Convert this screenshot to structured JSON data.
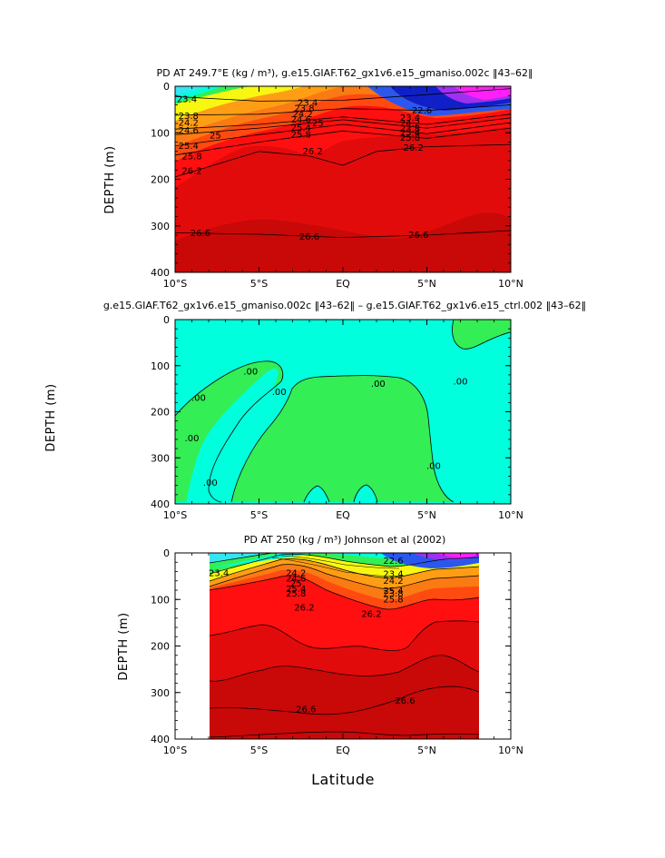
{
  "colors": {
    "cyan": "#33e6f0",
    "aqua": "#00ffdd",
    "green": "#33ee55",
    "yellow": "#f7f711",
    "orange": "#ff9e14",
    "orange_dark": "#fa7a14",
    "red_orange": "#ff4a10",
    "red": "#ff0f0f",
    "red_mid": "#e20b0b",
    "red_dark": "#c90808",
    "blue": "#2b57ee",
    "blue_dark": "#1020c8",
    "purple": "#9f30f0",
    "magenta": "#ff1ff7"
  },
  "chart_data": [
    {
      "type": "contour",
      "title": "PD AT 249.7°E (kg / m³), g.e15.GIAF.T62_gx1v6.e15_gmaniso.002c ‖43–62‖",
      "xlabel": "",
      "ylabel": "DEPTH (m)",
      "xlim": [
        -10,
        10
      ],
      "ylim": [
        0,
        400
      ],
      "x_ticks": [
        "10°S",
        "5°S",
        "EQ",
        "5°N",
        "10°N"
      ],
      "y_ticks": [
        "0",
        "100",
        "200",
        "300",
        "400"
      ],
      "isolines": [
        {
          "name": "23.4",
          "x": [
            -10,
            -5,
            0,
            5,
            10
          ],
          "y": [
            22,
            32,
            30,
            18,
            5
          ]
        },
        {
          "name": "23.8",
          "x": [
            -10,
            -5,
            0,
            5,
            10
          ],
          "y": [
            62,
            60,
            48,
            52,
            40
          ]
        },
        {
          "name": "24.6",
          "x": [
            -10,
            -5,
            0,
            5,
            10
          ],
          "y": [
            92,
            82,
            66,
            82,
            60
          ]
        },
        {
          "name": "25",
          "x": [
            -10,
            -5,
            0,
            5,
            10
          ],
          "y": [
            104,
            90,
            72,
            90,
            68
          ]
        },
        {
          "name": "25.4",
          "x": [
            -10,
            -5,
            0,
            5,
            10
          ],
          "y": [
            128,
            104,
            82,
            102,
            78
          ]
        },
        {
          "name": "25.8",
          "x": [
            -10,
            -5,
            0,
            5,
            10
          ],
          "y": [
            148,
            120,
            96,
            112,
            90
          ]
        },
        {
          "name": "26.2",
          "x": [
            -10,
            -5,
            -2,
            0,
            2,
            5,
            10
          ],
          "y": [
            195,
            140,
            150,
            170,
            140,
            130,
            125
          ]
        },
        {
          "name": "26.6",
          "x": [
            -10,
            -5,
            0,
            5,
            10
          ],
          "y": [
            315,
            318,
            325,
            320,
            310
          ]
        }
      ],
      "contour_labels": [
        {
          "text": "23.4",
          "x": -9.3,
          "y": 28
        },
        {
          "text": "23.8",
          "x": -9.2,
          "y": 64
        },
        {
          "text": "24.2",
          "x": -9.2,
          "y": 79
        },
        {
          "text": "24.6",
          "x": -9.2,
          "y": 96
        },
        {
          "text": "25",
          "x": -7.6,
          "y": 106
        },
        {
          "text": "25.4",
          "x": -9.2,
          "y": 129
        },
        {
          "text": "25.8",
          "x": -9.0,
          "y": 151
        },
        {
          "text": "26.2",
          "x": -9.0,
          "y": 182
        },
        {
          "text": "23.4",
          "x": -2.1,
          "y": 36
        },
        {
          "text": "23.8",
          "x": -2.3,
          "y": 48
        },
        {
          "text": "24.2",
          "x": -2.4,
          "y": 60
        },
        {
          "text": "24.6",
          "x": -2.5,
          "y": 72
        },
        {
          "text": "25",
          "x": -1.5,
          "y": 80
        },
        {
          "text": "25.4",
          "x": -2.5,
          "y": 90
        },
        {
          "text": "25.8",
          "x": -2.5,
          "y": 104
        },
        {
          "text": "26.2",
          "x": -1.8,
          "y": 140
        },
        {
          "text": "22.6",
          "x": 4.7,
          "y": 53
        },
        {
          "text": "23.4",
          "x": 4.0,
          "y": 68
        },
        {
          "text": "24.2",
          "x": 4.0,
          "y": 80
        },
        {
          "text": "23.8",
          "x": 4.0,
          "y": 92
        },
        {
          "text": "25.4",
          "x": 4.0,
          "y": 100
        },
        {
          "text": "25.8",
          "x": 4.0,
          "y": 111
        },
        {
          "text": "26.2",
          "x": 4.2,
          "y": 133
        },
        {
          "text": "26.6",
          "x": -8.5,
          "y": 316
        },
        {
          "text": "26.6",
          "x": -2.0,
          "y": 324
        },
        {
          "text": "26.6",
          "x": 4.5,
          "y": 320
        }
      ]
    },
    {
      "type": "contour",
      "title": "g.e15.GIAF.T62_gx1v6.e15_gmaniso.002c ‖43–62‖ – g.e15.GIAF.T62_gx1v6.e15_ctrl.002 ‖43–62‖",
      "xlabel": "",
      "ylabel": "DEPTH (m)",
      "xlim": [
        -10,
        10
      ],
      "ylim": [
        0,
        400
      ],
      "x_ticks": [
        "10°S",
        "5°S",
        "EQ",
        "5°N",
        "10°N"
      ],
      "y_ticks": [
        "0",
        "100",
        "200",
        "300",
        "400"
      ],
      "contour_labels": [
        {
          "text": ".00",
          "x": -5.5,
          "y": 113
        },
        {
          "text": ".00",
          "x": -8.6,
          "y": 170
        },
        {
          "text": ".00",
          "x": -9.0,
          "y": 258
        },
        {
          "text": ".00",
          "x": -3.8,
          "y": 158
        },
        {
          "text": ".00",
          "x": -7.9,
          "y": 355
        },
        {
          "text": ".00",
          "x": 2.1,
          "y": 140
        },
        {
          "text": ".00",
          "x": 5.4,
          "y": 318
        },
        {
          "text": ".00",
          "x": 7.0,
          "y": 135
        }
      ]
    },
    {
      "type": "contour",
      "title": "PD AT 250 (kg / m³) Johnson et al (2002)",
      "xlabel": "Latitude",
      "ylabel": "DEPTH (m)",
      "xlim": [
        -10,
        10
      ],
      "ylim": [
        0,
        400
      ],
      "data_xrange": [
        -7.6,
        8.2
      ],
      "x_ticks": [
        "10°S",
        "5°S",
        "EQ",
        "5°N",
        "10°N"
      ],
      "y_ticks": [
        "0",
        "100",
        "200",
        "300",
        "400"
      ],
      "contour_labels": [
        {
          "text": "23.4",
          "x": -7.4,
          "y": 44
        },
        {
          "text": "22.6",
          "x": 3.0,
          "y": 18
        },
        {
          "text": "23.4",
          "x": 3.0,
          "y": 46
        },
        {
          "text": "24.2",
          "x": 3.0,
          "y": 60
        },
        {
          "text": "25.4",
          "x": 3.0,
          "y": 82
        },
        {
          "text": "23.8",
          "x": 3.0,
          "y": 88
        },
        {
          "text": "25.8",
          "x": 3.0,
          "y": 100
        },
        {
          "text": "24.2",
          "x": -2.8,
          "y": 44
        },
        {
          "text": "24.6",
          "x": -2.8,
          "y": 56
        },
        {
          "text": "25",
          "x": -2.8,
          "y": 66
        },
        {
          "text": "25.4",
          "x": -2.8,
          "y": 78
        },
        {
          "text": "25.8",
          "x": -2.8,
          "y": 88
        },
        {
          "text": "26.2",
          "x": -2.3,
          "y": 118
        },
        {
          "text": "26.2",
          "x": 1.7,
          "y": 132
        },
        {
          "text": "26.6",
          "x": -2.2,
          "y": 337
        },
        {
          "text": "26.6",
          "x": 3.7,
          "y": 318
        }
      ]
    }
  ]
}
